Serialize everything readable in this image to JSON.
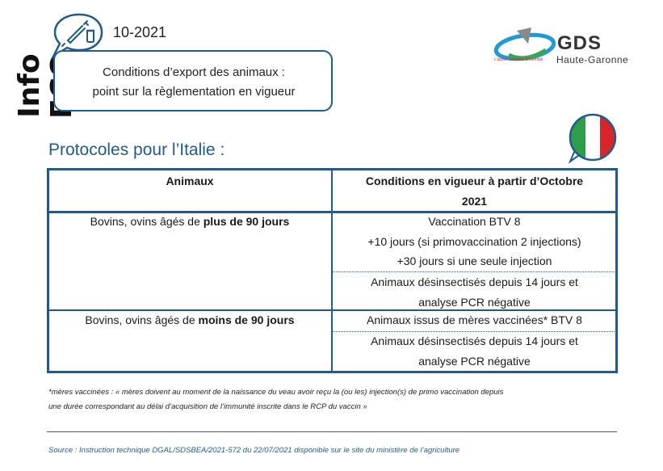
{
  "sidebar": {
    "vertical_title": "Info FCO"
  },
  "header": {
    "issue": "10-2021",
    "subject_line1": "Conditions d’export des animaux :",
    "subject_line2": "point sur la règlementation en vigueur",
    "icon": "syringe-vial-icon"
  },
  "logo": {
    "name": "GDS",
    "region": "Haute-Garonne",
    "tagline": "L'action sanitaire ensemble"
  },
  "section": {
    "title": "Protocoles pour l’Italie :",
    "flag": "italy-flag-icon"
  },
  "table": {
    "headers": {
      "animals": "Animaux",
      "conditions_line1": "Conditions en vigueur à partir d’Octobre",
      "conditions_line2": "2021"
    },
    "rows": [
      {
        "animal_prefix": "Bovins, ovins âgés de ",
        "animal_bold": "plus de 90 jours",
        "conditions": [
          [
            "Vaccination BTV 8",
            "+10 jours (si primovaccination 2 injections)",
            "+30 jours si une seule injection"
          ],
          [
            "Animaux désinsectisés depuis 14 jours et",
            "analyse PCR négative"
          ]
        ]
      },
      {
        "animal_prefix": "Bovins, ovins âgés de ",
        "animal_bold": "moins de 90 jours",
        "conditions": [
          [
            "Animaux issus de mères vaccinées* BTV 8"
          ],
          [
            "Animaux désinsectisés depuis 14 jours et",
            "analyse PCR négative"
          ]
        ]
      }
    ]
  },
  "footnote": {
    "line1": "*mères vaccinées : « mères doivent au moment de la naissance du veau avoir reçu la (ou les) injection(s) de primo vaccination depuis",
    "line2": "une durée correspondant au délai d’acquisition de l’immunité inscrite dans le RCP du vaccin »"
  },
  "source": "Source : Instruction technique DGAL/SDSBEA/2021-572 du 22/07/2021 disponible sur le site du ministère de l’agriculture",
  "colors": {
    "accent": "#1f5b8e",
    "flag_green": "#2e9e4a",
    "flag_red": "#d6262b"
  }
}
